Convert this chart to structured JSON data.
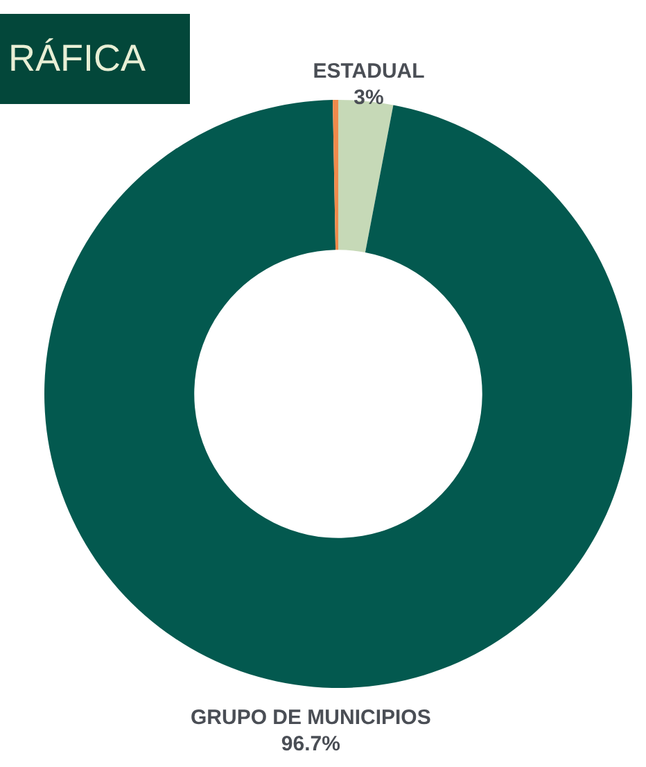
{
  "chart_data": {
    "type": "donut",
    "title": "RÁFICA",
    "categories": [
      "ESTADUAL",
      "GRUPO DE MUNICIPIOS",
      null
    ],
    "values": [
      3,
      96.7,
      0.3
    ],
    "value_labels": [
      "3%",
      "96.7%",
      null
    ],
    "colors": [
      "#c6d9b7",
      "#03594f",
      "#f08a4b"
    ]
  }
}
